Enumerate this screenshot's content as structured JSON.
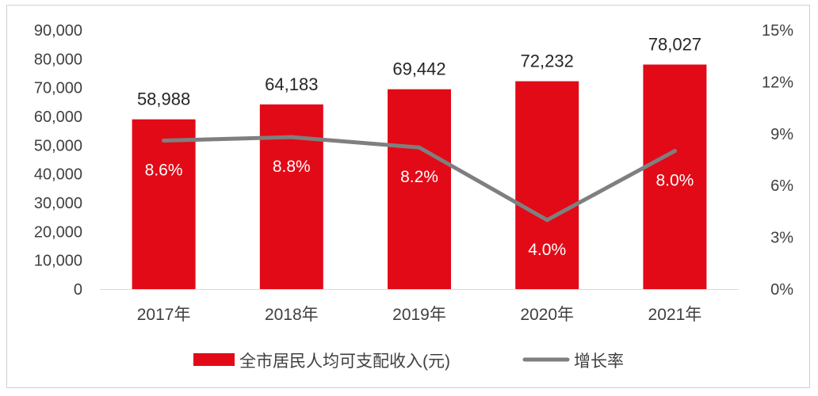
{
  "chart_data": {
    "type": "bar",
    "categories": [
      "2017年",
      "2018年",
      "2019年",
      "2020年",
      "2021年"
    ],
    "series": [
      {
        "name": "全市居民人均可支配收入(元)",
        "type": "bar",
        "axis": "left",
        "values": [
          58988,
          64183,
          69442,
          72232,
          78027
        ],
        "labels": [
          "58,988",
          "64,183",
          "69,442",
          "72,232",
          "78,027"
        ],
        "color": "#e20a17"
      },
      {
        "name": "增长率",
        "type": "line",
        "axis": "right",
        "values": [
          8.6,
          8.8,
          8.2,
          4.0,
          8.0
        ],
        "labels": [
          "8.6%",
          "8.8%",
          "8.2%",
          "4.0%",
          "8.0%"
        ],
        "color": "#7f7f7f"
      }
    ],
    "y_left": {
      "ylim": [
        0,
        90000
      ],
      "ticks": [
        "0",
        "10,000",
        "20,000",
        "30,000",
        "40,000",
        "50,000",
        "60,000",
        "70,000",
        "80,000",
        "90,000"
      ]
    },
    "y_right": {
      "ylim": [
        0,
        15
      ],
      "ticks": [
        "0%",
        "3%",
        "6%",
        "9%",
        "12%",
        "15%"
      ]
    },
    "grid": false,
    "legend": "bottom"
  }
}
